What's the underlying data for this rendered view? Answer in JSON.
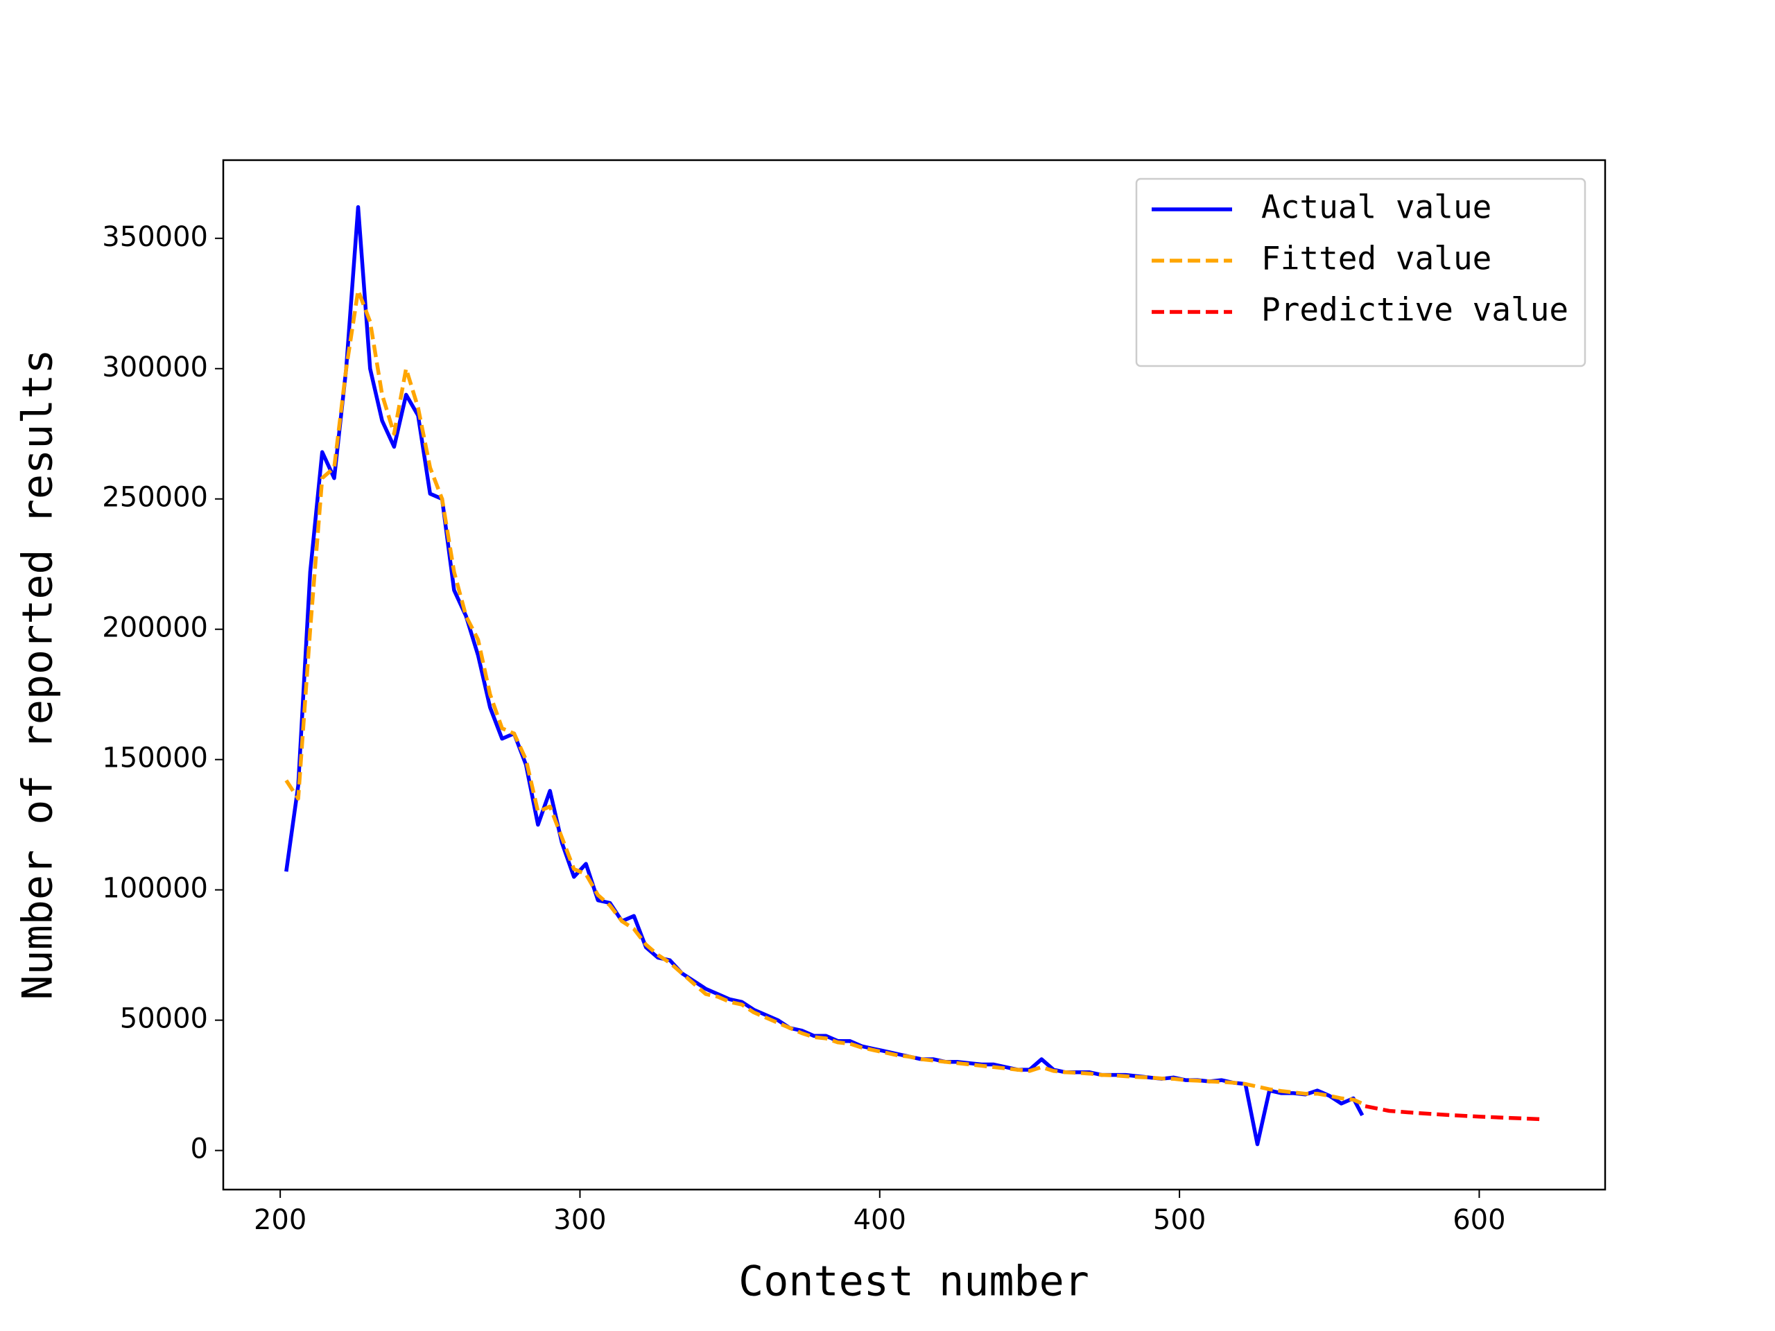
{
  "chart_data": {
    "type": "line",
    "xlabel": "Contest number",
    "ylabel": "Number of  reported results",
    "xlim": [
      181,
      642
    ],
    "xticks": [
      200,
      300,
      400,
      500,
      600
    ],
    "ylim": [
      -15000,
      380000
    ],
    "yticks": [
      0,
      50000,
      100000,
      150000,
      200000,
      250000,
      300000,
      350000
    ],
    "legend": "upper right",
    "series": [
      {
        "name": "Actual value",
        "color": "#0000ff",
        "linestyle": "solid",
        "x": [
          202,
          206,
          210,
          214,
          218,
          222,
          226,
          230,
          234,
          238,
          242,
          246,
          250,
          254,
          258,
          262,
          266,
          270,
          274,
          278,
          282,
          286,
          290,
          294,
          298,
          302,
          306,
          310,
          314,
          318,
          322,
          326,
          330,
          334,
          338,
          342,
          346,
          350,
          354,
          358,
          362,
          366,
          370,
          374,
          378,
          382,
          386,
          390,
          394,
          398,
          402,
          406,
          410,
          414,
          418,
          422,
          426,
          430,
          434,
          438,
          442,
          446,
          450,
          454,
          458,
          462,
          466,
          470,
          474,
          478,
          482,
          486,
          490,
          494,
          498,
          502,
          506,
          510,
          514,
          518,
          522,
          526,
          530,
          534,
          538,
          542,
          546,
          550,
          554,
          558,
          561
        ],
        "values": [
          107000,
          140000,
          222000,
          268000,
          258000,
          300000,
          362000,
          300000,
          280000,
          270000,
          290000,
          282000,
          252000,
          250000,
          215000,
          205000,
          190000,
          170000,
          158000,
          160000,
          148000,
          125000,
          138000,
          118000,
          105000,
          110000,
          96000,
          95000,
          88000,
          90000,
          78000,
          74000,
          73000,
          68000,
          65000,
          62000,
          60000,
          58000,
          57000,
          54000,
          52000,
          50000,
          47000,
          46000,
          44000,
          44000,
          42000,
          42000,
          40000,
          39000,
          38000,
          37000,
          36000,
          35000,
          35000,
          34000,
          34000,
          33500,
          33000,
          33000,
          32000,
          31000,
          31000,
          35000,
          31000,
          30000,
          30000,
          30000,
          29000,
          29000,
          29000,
          28500,
          28000,
          27500,
          28000,
          27000,
          27000,
          26500,
          27000,
          26000,
          25500,
          2400,
          23000,
          22000,
          22000,
          21500,
          23000,
          21000,
          18000,
          20000,
          13500
        ]
      },
      {
        "name": "Fitted value",
        "color": "#ffa500",
        "linestyle": "dashed",
        "x": [
          202,
          206,
          210,
          214,
          218,
          222,
          226,
          230,
          234,
          238,
          242,
          246,
          250,
          254,
          258,
          262,
          266,
          270,
          274,
          278,
          282,
          286,
          290,
          294,
          298,
          302,
          306,
          310,
          314,
          318,
          322,
          326,
          330,
          334,
          338,
          342,
          346,
          350,
          354,
          358,
          362,
          366,
          370,
          374,
          378,
          382,
          386,
          390,
          394,
          398,
          402,
          406,
          410,
          414,
          418,
          422,
          426,
          430,
          434,
          438,
          442,
          446,
          450,
          454,
          458,
          462,
          466,
          470,
          474,
          478,
          482,
          486,
          490,
          494,
          498,
          502,
          506,
          510,
          514,
          518,
          522,
          526,
          530,
          534,
          538,
          542,
          546,
          550,
          554,
          558,
          562
        ],
        "values": [
          142000,
          135000,
          200000,
          258000,
          262000,
          300000,
          330000,
          318000,
          290000,
          275000,
          300000,
          285000,
          262000,
          250000,
          222000,
          205000,
          196000,
          175000,
          162000,
          160000,
          150000,
          130000,
          132000,
          120000,
          108000,
          106000,
          98000,
          94000,
          88000,
          85000,
          79000,
          75000,
          72000,
          68000,
          64000,
          60000,
          59000,
          57000,
          56000,
          53000,
          51000,
          49000,
          47000,
          45000,
          43500,
          43000,
          41500,
          41000,
          39500,
          38500,
          37500,
          36500,
          36000,
          35000,
          34500,
          34000,
          33500,
          33000,
          32500,
          32000,
          31500,
          31000,
          30500,
          32000,
          30500,
          30000,
          29800,
          29500,
          29000,
          28800,
          28500,
          28200,
          28000,
          27600,
          27500,
          27000,
          26800,
          26500,
          26300,
          26000,
          25500,
          24500,
          23500,
          22800,
          22300,
          21800,
          21800,
          21000,
          20000,
          19500,
          17500
        ]
      },
      {
        "name": "Predictive value",
        "color": "#ff0000",
        "linestyle": "dashed",
        "x": [
          562,
          570,
          580,
          590,
          600,
          610,
          621
        ],
        "values": [
          17000,
          15200,
          14300,
          13600,
          13000,
          12500,
          12000
        ]
      }
    ]
  }
}
